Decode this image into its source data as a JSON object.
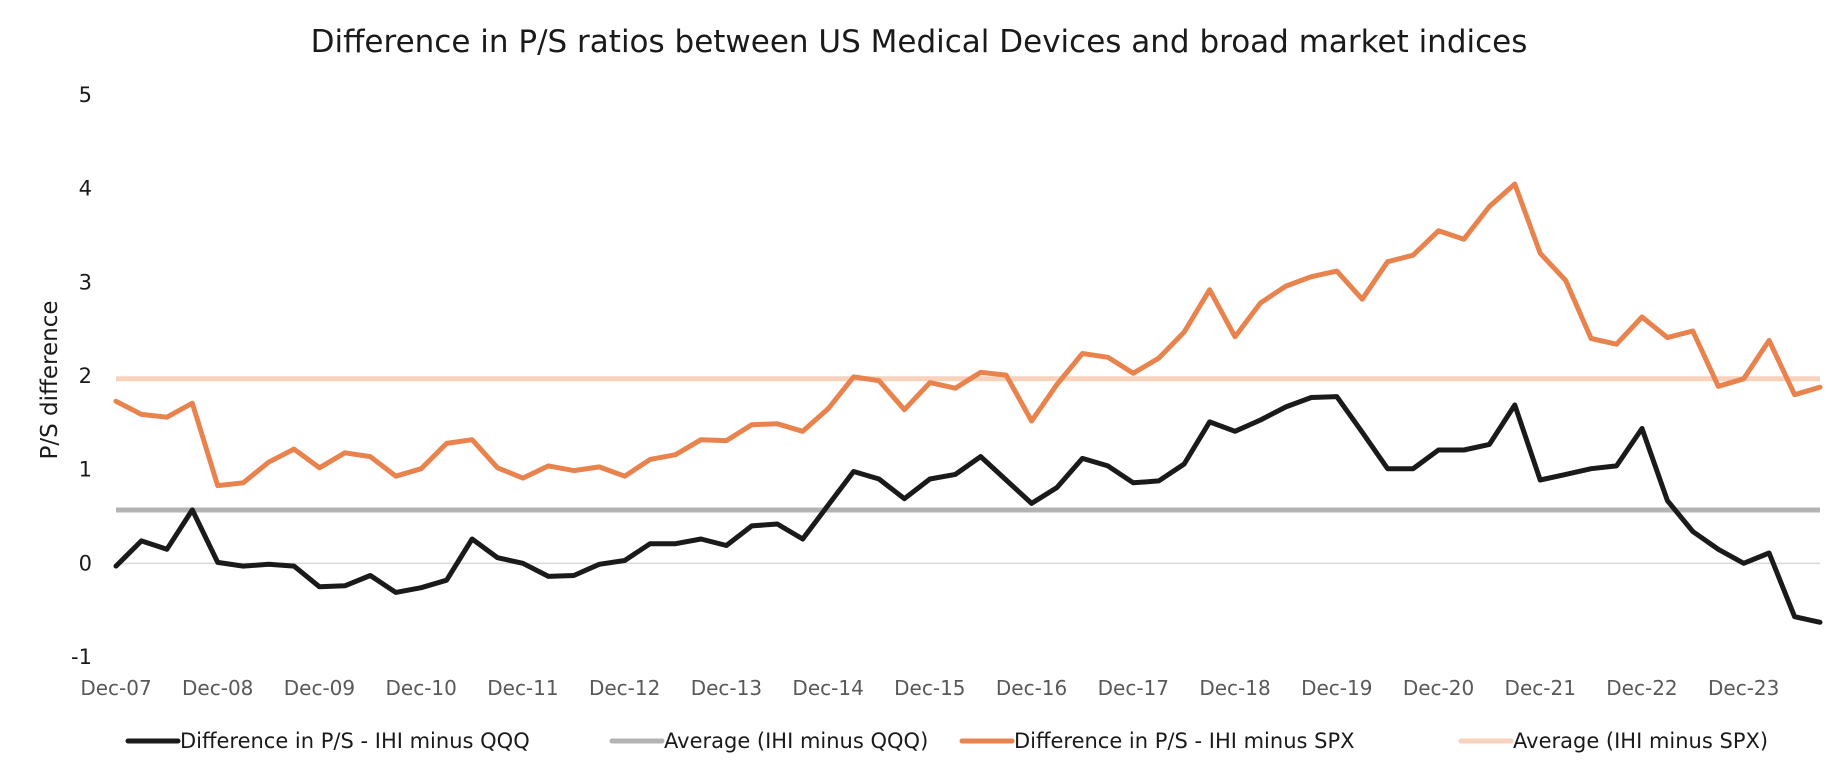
{
  "chart_data": {
    "type": "line",
    "title": "Difference in P/S ratios between US Medical Devices and broad market indices",
    "ylabel": "P/S difference",
    "xlabel": "",
    "ylim": [
      -1,
      5
    ],
    "yticks": [
      5,
      4,
      3,
      2,
      1,
      0,
      -1
    ],
    "ytick_labels": [
      "5",
      "4",
      "3",
      "2",
      "1",
      "0",
      "-1"
    ],
    "xtick_labels": [
      "Dec-07",
      "Dec-08",
      "Dec-09",
      "Dec-10",
      "Dec-11",
      "Dec-12",
      "Dec-13",
      "Dec-14",
      "Dec-15",
      "Dec-16",
      "Dec-17",
      "Dec-18",
      "Dec-19",
      "Dec-20",
      "Dec-21",
      "Dec-22",
      "Dec-23"
    ],
    "grid": false,
    "legend_position": "bottom",
    "x_unit": "quarterly",
    "series": [
      {
        "name": "Difference in P/S - IHI minus QQQ",
        "color": "#1a1a1a",
        "values": [
          -0.03,
          0.24,
          0.15,
          0.57,
          0.01,
          -0.03,
          -0.01,
          -0.03,
          -0.25,
          -0.24,
          -0.13,
          -0.31,
          -0.26,
          -0.18,
          0.26,
          0.06,
          0.0,
          -0.14,
          -0.13,
          -0.01,
          0.03,
          0.21,
          0.21,
          0.26,
          0.19,
          0.4,
          0.42,
          0.26,
          0.62,
          0.98,
          0.9,
          0.69,
          0.9,
          0.95,
          1.14,
          0.89,
          0.64,
          0.81,
          1.12,
          1.04,
          0.86,
          0.88,
          1.06,
          1.51,
          1.41,
          1.53,
          1.67,
          1.77,
          1.78,
          1.4,
          1.01,
          1.01,
          1.21,
          1.21,
          1.27,
          1.69,
          0.89,
          0.95,
          1.01,
          1.04,
          1.44,
          0.67,
          0.34,
          0.15,
          0.0,
          0.11,
          -0.57,
          -0.63
        ]
      },
      {
        "name": "Average (IHI minus QQQ)",
        "color": "#b3b3b3",
        "constant": 0.57
      },
      {
        "name": "Difference in P/S - IHI minus SPX",
        "color": "#e8834e",
        "values": [
          1.73,
          1.59,
          1.56,
          1.71,
          0.83,
          0.86,
          1.08,
          1.22,
          1.02,
          1.18,
          1.14,
          0.93,
          1.01,
          1.28,
          1.32,
          1.02,
          0.91,
          1.04,
          0.99,
          1.03,
          0.93,
          1.11,
          1.16,
          1.32,
          1.31,
          1.48,
          1.49,
          1.41,
          1.65,
          1.99,
          1.95,
          1.64,
          1.93,
          1.87,
          2.04,
          2.01,
          1.52,
          1.91,
          2.24,
          2.2,
          2.03,
          2.19,
          2.47,
          2.92,
          2.42,
          2.78,
          2.96,
          3.06,
          3.12,
          2.82,
          3.22,
          3.29,
          3.55,
          3.46,
          3.81,
          4.05,
          3.31,
          3.02,
          2.4,
          2.34,
          2.63,
          2.41,
          2.48,
          1.89,
          1.97,
          2.38,
          1.8,
          1.88
        ]
      },
      {
        "name": "Average (IHI minus SPX)",
        "color": "#f7d2bd",
        "constant": 1.97
      }
    ]
  }
}
